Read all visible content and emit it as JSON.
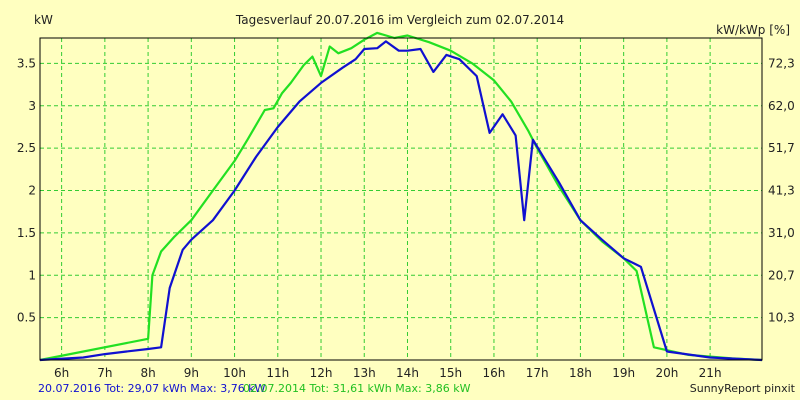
{
  "chart_data": {
    "type": "line",
    "title": "Tagesverlauf 20.07.2016 im Vergleich zum 02.07.2014",
    "ylabel_left": "kW",
    "ylabel_right": "kW/kWp [%]",
    "ylim": [
      0,
      3.8
    ],
    "xlim": [
      5.5,
      22.2
    ],
    "y_ticks": [
      0.5,
      1,
      1.5,
      2,
      2.5,
      3,
      3.5
    ],
    "y_tick_labels": [
      "0.5",
      "1",
      "1.5",
      "2",
      "2.5",
      "3",
      "3.5"
    ],
    "right_ticks": [
      {
        "label": "10,3",
        "y": 0.5
      },
      {
        "label": "20,7",
        "y": 1.0
      },
      {
        "label": "31,0",
        "y": 1.5
      },
      {
        "label": "41,3",
        "y": 2.0
      },
      {
        "label": "51,7",
        "y": 2.5
      },
      {
        "label": "62,0",
        "y": 3.0
      },
      {
        "label": "72,3",
        "y": 3.5
      }
    ],
    "x_ticks": [
      6,
      7,
      8,
      9,
      10,
      11,
      12,
      13,
      14,
      15,
      16,
      17,
      18,
      19,
      20,
      21
    ],
    "x_tick_labels": [
      "6h",
      "7h",
      "8h",
      "9h",
      "10h",
      "11h",
      "12h",
      "13h",
      "14h",
      "15h",
      "16h",
      "17h",
      "18h",
      "19h",
      "20h",
      "21h"
    ],
    "grid": true,
    "colors": {
      "background": "#ffffc0",
      "grid": "#33cc33",
      "axis": "#000000",
      "plot_bg": "#ffffc0"
    },
    "series": [
      {
        "name": "02.07.2014",
        "color": "#22e022",
        "legend": "02.07.2014 Tot: 31,61 kWh Max: 3,86 kW",
        "points": [
          [
            5.5,
            0.0
          ],
          [
            8.0,
            0.25
          ],
          [
            8.1,
            1.0
          ],
          [
            8.3,
            1.28
          ],
          [
            8.6,
            1.45
          ],
          [
            9.0,
            1.65
          ],
          [
            9.5,
            2.0
          ],
          [
            10.0,
            2.35
          ],
          [
            10.3,
            2.6
          ],
          [
            10.7,
            2.95
          ],
          [
            10.9,
            2.97
          ],
          [
            11.1,
            3.15
          ],
          [
            11.3,
            3.27
          ],
          [
            11.6,
            3.48
          ],
          [
            11.8,
            3.58
          ],
          [
            12.0,
            3.35
          ],
          [
            12.2,
            3.7
          ],
          [
            12.4,
            3.62
          ],
          [
            12.7,
            3.68
          ],
          [
            13.0,
            3.78
          ],
          [
            13.3,
            3.86
          ],
          [
            13.7,
            3.8
          ],
          [
            14.0,
            3.83
          ],
          [
            14.5,
            3.75
          ],
          [
            15.0,
            3.65
          ],
          [
            15.5,
            3.5
          ],
          [
            16.0,
            3.3
          ],
          [
            16.4,
            3.05
          ],
          [
            16.8,
            2.7
          ],
          [
            17.0,
            2.5
          ],
          [
            17.5,
            2.05
          ],
          [
            18.0,
            1.65
          ],
          [
            18.5,
            1.4
          ],
          [
            19.0,
            1.2
          ],
          [
            19.3,
            1.05
          ],
          [
            19.7,
            0.15
          ],
          [
            20.5,
            0.06
          ],
          [
            21.5,
            0.02
          ],
          [
            22.2,
            0.0
          ]
        ]
      },
      {
        "name": "20.07.2016",
        "color": "#1010d0",
        "legend": "20.07.2016 Tot: 29,07 kWh Max: 3,76 kW",
        "points": [
          [
            5.5,
            0.0
          ],
          [
            6.5,
            0.03
          ],
          [
            7.0,
            0.07
          ],
          [
            7.5,
            0.1
          ],
          [
            8.0,
            0.13
          ],
          [
            8.3,
            0.15
          ],
          [
            8.5,
            0.85
          ],
          [
            8.8,
            1.3
          ],
          [
            9.0,
            1.42
          ],
          [
            9.5,
            1.65
          ],
          [
            10.0,
            2.0
          ],
          [
            10.5,
            2.4
          ],
          [
            11.0,
            2.75
          ],
          [
            11.5,
            3.05
          ],
          [
            12.0,
            3.27
          ],
          [
            12.5,
            3.45
          ],
          [
            12.8,
            3.55
          ],
          [
            13.0,
            3.67
          ],
          [
            13.3,
            3.68
          ],
          [
            13.5,
            3.76
          ],
          [
            13.8,
            3.65
          ],
          [
            14.0,
            3.65
          ],
          [
            14.3,
            3.67
          ],
          [
            14.6,
            3.4
          ],
          [
            14.9,
            3.6
          ],
          [
            15.2,
            3.55
          ],
          [
            15.6,
            3.35
          ],
          [
            15.9,
            2.68
          ],
          [
            16.2,
            2.9
          ],
          [
            16.5,
            2.65
          ],
          [
            16.7,
            1.65
          ],
          [
            16.9,
            2.6
          ],
          [
            17.2,
            2.35
          ],
          [
            17.5,
            2.1
          ],
          [
            18.0,
            1.65
          ],
          [
            18.5,
            1.42
          ],
          [
            19.0,
            1.2
          ],
          [
            19.4,
            1.1
          ],
          [
            20.0,
            0.1
          ],
          [
            21.0,
            0.03
          ],
          [
            22.2,
            0.0
          ]
        ]
      }
    ]
  },
  "footer": {
    "left_2016": "20.07.2016 Tot: 29,07 kWh Max: 3,76 kW",
    "left_2014": "02.07.2014 Tot: 31,61 kWh Max: 3,86 kW",
    "right": "SunnyReport pinxit"
  }
}
